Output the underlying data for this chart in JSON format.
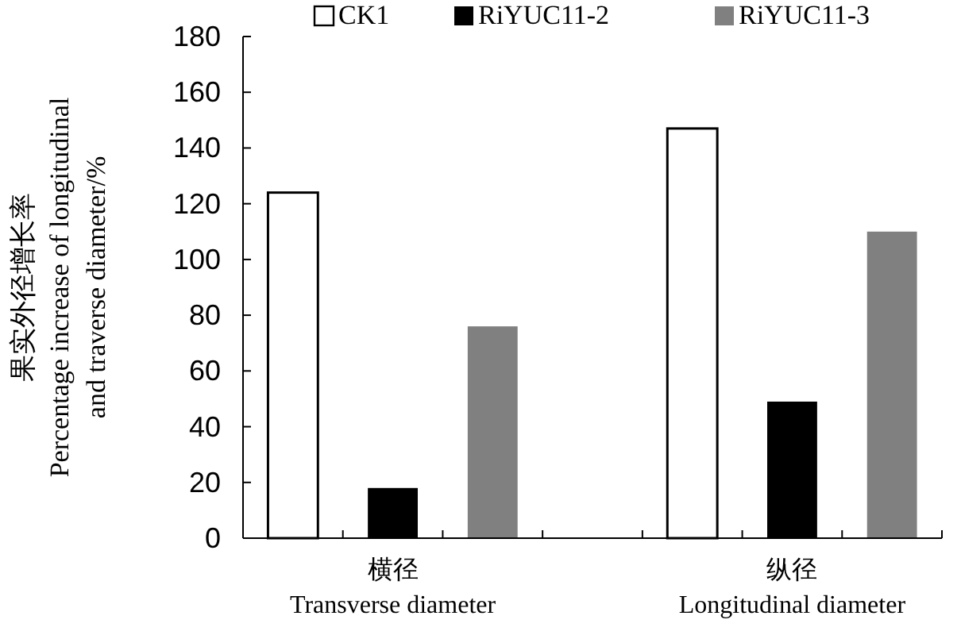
{
  "chart_data": {
    "type": "bar",
    "ylabel": "果实外径增长率\nPercentage increase of longitudinal\nand traverse diameter/%",
    "categories": [
      "横径\nTransverse diameter",
      "纵径\nLongitudinal diameter"
    ],
    "series": [
      {
        "name": "CK1",
        "color": "#ffffff",
        "values": [
          124,
          147
        ]
      },
      {
        "name": "RiYUC11-2",
        "color": "#000000",
        "values": [
          18,
          49
        ]
      },
      {
        "name": "RiYUC11-3",
        "color": "#808080",
        "values": [
          76,
          110
        ]
      }
    ],
    "ylim": [
      0,
      180
    ],
    "yticks": [
      0,
      20,
      40,
      60,
      80,
      100,
      120,
      140,
      160,
      180
    ],
    "legend": "top",
    "grid": false
  }
}
